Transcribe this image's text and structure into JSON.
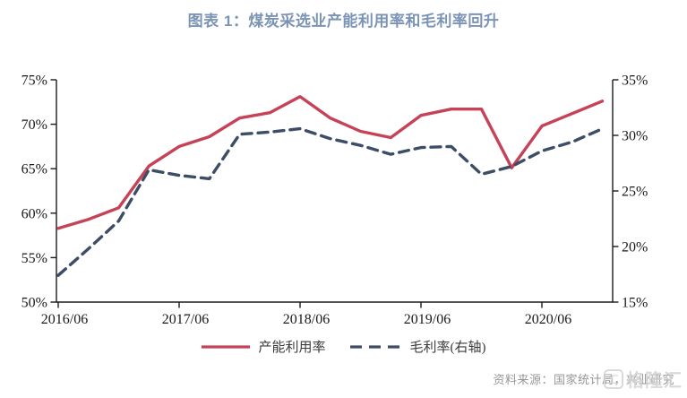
{
  "title": "图表 1：煤炭采选业产能利用率和毛利率回升",
  "source_note": "资料来源：国家统计局，兴业研究",
  "watermark": {
    "text": "格隆汇",
    "icon": "汇"
  },
  "colors": {
    "title_blue": "#7b94b5",
    "axis": "#1a1a1a",
    "utilization_red": "#c64256",
    "margin_navy": "#3e4d66",
    "source_gray": "#969696",
    "watermark_gray": "#d0d0d0"
  },
  "chart_data": {
    "type": "line",
    "title": "图表 1：煤炭采选业产能利用率和毛利率回升",
    "x": [
      "2016/06",
      "2016/09",
      "2016/12",
      "2017/03",
      "2017/06",
      "2017/09",
      "2017/12",
      "2018/03",
      "2018/06",
      "2018/09",
      "2018/12",
      "2019/03",
      "2019/06",
      "2019/09",
      "2019/12",
      "2020/03",
      "2020/06",
      "2020/09",
      "2020/12"
    ],
    "x_tick_labels": [
      "2016/06",
      "2017/06",
      "2018/06",
      "2019/06",
      "2020/06"
    ],
    "x_tick_indices": [
      0,
      4,
      8,
      12,
      16
    ],
    "series": [
      {
        "name": "产能利用率",
        "axis": "left",
        "style": "solid",
        "color": "#c64256",
        "values": [
          58.3,
          59.3,
          60.6,
          65.3,
          67.5,
          68.6,
          70.7,
          71.3,
          73.1,
          70.7,
          69.2,
          68.5,
          71.0,
          71.7,
          71.7,
          65.1,
          69.8,
          71.2,
          72.6
        ]
      },
      {
        "name": "毛利率(右轴)",
        "axis": "right",
        "style": "dashed",
        "color": "#3e4d66",
        "values": [
          17.4,
          19.8,
          22.3,
          26.9,
          26.4,
          26.1,
          30.1,
          30.3,
          30.6,
          29.7,
          29.1,
          28.3,
          28.9,
          29.0,
          26.5,
          27.2,
          28.6,
          29.4,
          30.6
        ]
      }
    ],
    "left_axis": {
      "min": 50,
      "max": 75,
      "step": 5,
      "format": "percent"
    },
    "right_axis": {
      "min": 15,
      "max": 35,
      "step": 5,
      "format": "percent"
    },
    "grid": false,
    "legend_position": "bottom"
  }
}
